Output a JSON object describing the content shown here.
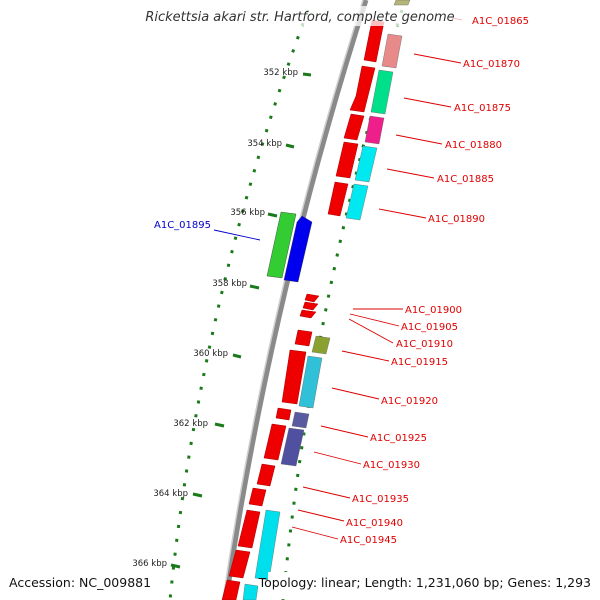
{
  "map": {
    "organism_title": "Rickettsia akari str. Hartford, complete genome",
    "accession": "Accession: NC_009881",
    "summary": "Topology: linear; Length: 1,231,060 bp; Genes: 1,293",
    "label_color_forward": "#e00000",
    "label_color_reverse": "#0000cc",
    "backbone_color": "#888888",
    "tick_color": "#1a7a1a"
  },
  "kbp_ticks": [
    "352 kbp",
    "354 kbp",
    "356 kbp",
    "358 kbp",
    "360 kbp",
    "362 kbp",
    "364 kbp",
    "366 kbp"
  ],
  "gene_labels": [
    {
      "id": "A1C_01865",
      "strand": "forward"
    },
    {
      "id": "A1C_01870",
      "strand": "forward"
    },
    {
      "id": "A1C_01875",
      "strand": "forward"
    },
    {
      "id": "A1C_01880",
      "strand": "forward"
    },
    {
      "id": "A1C_01885",
      "strand": "forward"
    },
    {
      "id": "A1C_01890",
      "strand": "forward"
    },
    {
      "id": "A1C_01895",
      "strand": "reverse"
    },
    {
      "id": "A1C_01900",
      "strand": "forward"
    },
    {
      "id": "A1C_01905",
      "strand": "forward"
    },
    {
      "id": "A1C_01910",
      "strand": "forward"
    },
    {
      "id": "A1C_01915",
      "strand": "forward"
    },
    {
      "id": "A1C_01920",
      "strand": "forward"
    },
    {
      "id": "A1C_01925",
      "strand": "forward"
    },
    {
      "id": "A1C_01930",
      "strand": "forward"
    },
    {
      "id": "A1C_01935",
      "strand": "forward"
    },
    {
      "id": "A1C_01940",
      "strand": "forward"
    },
    {
      "id": "A1C_01945",
      "strand": "forward"
    }
  ]
}
